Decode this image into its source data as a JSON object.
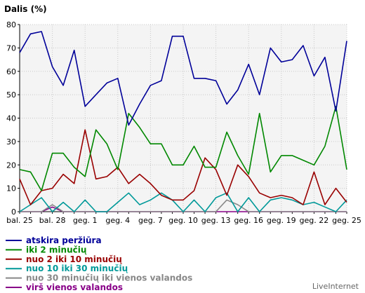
{
  "chart_data": {
    "type": "line",
    "ylabel": "Dalis (%)",
    "ylim": [
      0,
      80
    ],
    "yticks": [
      0,
      10,
      20,
      30,
      40,
      50,
      60,
      70,
      80
    ],
    "grid": true,
    "x": [
      "bal. 25",
      "bal. 26",
      "bal. 27",
      "bal. 28",
      "bal. 29",
      "bal. 30",
      "geg. 1",
      "geg. 2",
      "geg. 3",
      "geg. 4",
      "geg. 5",
      "geg. 6",
      "geg. 7",
      "geg. 8",
      "geg. 9",
      "geg. 10",
      "geg. 11",
      "geg. 12",
      "geg. 13",
      "geg. 14",
      "geg. 15",
      "geg. 16",
      "geg. 17",
      "geg. 18",
      "geg. 19",
      "geg. 20",
      "geg. 21",
      "geg. 22",
      "geg. 23",
      "geg. 24",
      "geg. 25"
    ],
    "xtick_labels": [
      "bal. 25",
      "bal. 28",
      "geg. 1",
      "geg. 4",
      "geg. 7",
      "geg. 10",
      "geg. 13",
      "geg. 16",
      "geg. 19",
      "geg. 22",
      "geg. 25"
    ],
    "legend_position": "bottom-left",
    "series": [
      {
        "name": "atskira peržiūra",
        "color": "#000099",
        "values": [
          68,
          76,
          77,
          62,
          54,
          69,
          45,
          50,
          55,
          57,
          37,
          46,
          54,
          56,
          75,
          75,
          57,
          57,
          56,
          46,
          52,
          63,
          50,
          70,
          64,
          65,
          71,
          58,
          66,
          43,
          73
        ]
      },
      {
        "name": "iki 2 minučių",
        "color": "#008800",
        "values": [
          18,
          17,
          9,
          25,
          25,
          19,
          15,
          35,
          29,
          18,
          42,
          36,
          29,
          29,
          20,
          20,
          28,
          19,
          19,
          34,
          24,
          16,
          42,
          17,
          24,
          24,
          22,
          20,
          28,
          45,
          18
        ]
      },
      {
        "name": "nuo 2 iki 10 minučių",
        "color": "#990000",
        "values": [
          14,
          3,
          9,
          10,
          16,
          12,
          35,
          14,
          15,
          19,
          12,
          16,
          12,
          7,
          5,
          5,
          9,
          23,
          18,
          7,
          20,
          15,
          8,
          6,
          7,
          6,
          3,
          17,
          3,
          10,
          4
        ]
      },
      {
        "name": "nuo 10 iki 30 minučių",
        "color": "#009999",
        "values": [
          0,
          3,
          6,
          0,
          4,
          0,
          5,
          0,
          0,
          4,
          8,
          3,
          5,
          8,
          5,
          0,
          5,
          0,
          6,
          8,
          0,
          6,
          0,
          5,
          6,
          5,
          3,
          4,
          2,
          0,
          5
        ]
      },
      {
        "name": "nuo 30 minučių iki vienos valandos",
        "color": "#888888",
        "values": [
          0,
          0,
          0,
          3,
          0,
          0,
          0,
          0,
          0,
          0,
          0,
          0,
          0,
          0,
          0,
          0,
          0,
          0,
          0,
          5,
          3,
          0,
          0,
          0,
          0,
          0,
          0,
          0,
          0,
          0,
          0
        ]
      },
      {
        "name": "virš vienos valandos",
        "color": "#880088",
        "values": [
          0,
          0,
          0,
          2,
          0,
          0,
          0,
          0,
          0,
          0,
          0,
          0,
          0,
          0,
          0,
          0,
          0,
          0,
          0,
          0,
          0,
          0,
          0,
          0,
          0,
          0,
          0,
          0,
          0,
          0,
          0
        ]
      }
    ]
  },
  "brand": "LiveInternet"
}
